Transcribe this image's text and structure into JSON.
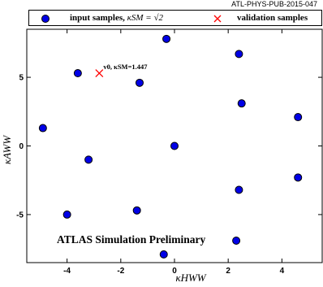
{
  "publication_id": "ATL-PHYS-PUB-2015-047",
  "legend": {
    "input_samples_text": "input samples, ",
    "input_samples_math": "κSM = √2",
    "validation_samples_text": "validation samples"
  },
  "annotation": "v0, κSM=1.447",
  "watermark": "ATLAS  Simulation Preliminary",
  "colors": {
    "marker_fill": "#0000e6",
    "validation_marker": "#ff0000"
  },
  "chart_data": {
    "type": "scatter",
    "xlabel": "κHWW",
    "ylabel": "κAWW",
    "xlim": [
      -5.5,
      5.5
    ],
    "ylim": [
      -8.5,
      8.5
    ],
    "xticks": [
      -4,
      -2,
      0,
      2,
      4
    ],
    "yticks": [
      -5,
      0,
      5
    ],
    "xtick_labels": [
      "-4",
      "-2",
      "0",
      "2",
      "4"
    ],
    "ytick_labels": [
      "-5",
      "0",
      "5"
    ],
    "series": [
      {
        "name": "input samples, κSM = √2",
        "marker": "circle",
        "points": [
          {
            "x": -0.3,
            "y": 7.8
          },
          {
            "x": 2.4,
            "y": 6.7
          },
          {
            "x": -3.6,
            "y": 5.3
          },
          {
            "x": -1.3,
            "y": 4.6
          },
          {
            "x": 2.5,
            "y": 3.1
          },
          {
            "x": 4.6,
            "y": 2.1
          },
          {
            "x": -4.9,
            "y": 1.3
          },
          {
            "x": 0.0,
            "y": 0.0
          },
          {
            "x": -3.2,
            "y": -1.0
          },
          {
            "x": 4.6,
            "y": -2.3
          },
          {
            "x": 2.4,
            "y": -3.2
          },
          {
            "x": -1.4,
            "y": -4.7
          },
          {
            "x": -4.0,
            "y": -5.0
          },
          {
            "x": 2.3,
            "y": -6.9
          },
          {
            "x": -0.4,
            "y": -7.9
          }
        ]
      },
      {
        "name": "validation samples",
        "marker": "x",
        "points": [
          {
            "x": -2.8,
            "y": 5.3,
            "label": "v0, κSM=1.447"
          }
        ]
      }
    ]
  }
}
